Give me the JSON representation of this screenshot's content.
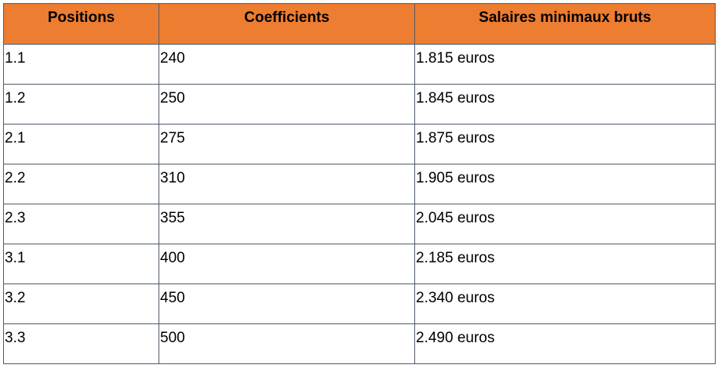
{
  "table": {
    "header_color": "#ed7d31",
    "headers": [
      "Positions",
      "Coefficients",
      "Salaires minimaux bruts"
    ],
    "rows": [
      [
        "1.1",
        "240",
        "1.815 euros"
      ],
      [
        "1.2",
        "250",
        "1.845 euros"
      ],
      [
        "2.1",
        "275",
        "1.875 euros"
      ],
      [
        "2.2",
        "310",
        "1.905 euros"
      ],
      [
        "2.3",
        "355",
        "2.045 euros"
      ],
      [
        "3.1",
        "400",
        "2.185 euros"
      ],
      [
        "3.2",
        "450",
        "2.340 euros"
      ],
      [
        "3.3",
        "500",
        "2.490 euros"
      ]
    ]
  }
}
